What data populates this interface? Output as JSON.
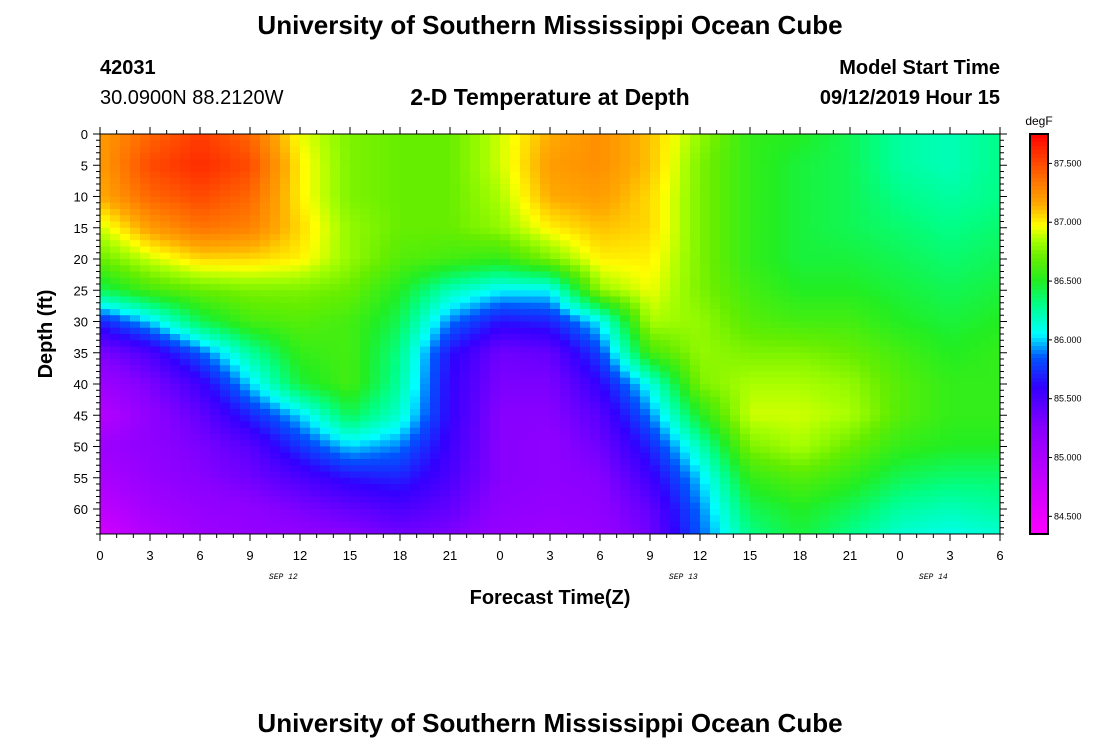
{
  "header": {
    "title": "University of Southern Mississippi Ocean Cube",
    "station_id": "42031",
    "coordinates": "30.0900N 88.2120W",
    "subtitle": "2-D Temperature at Depth",
    "model_label": "Model Start Time",
    "model_time": "09/12/2019 Hour 15"
  },
  "footer": {
    "title": "University of Southern Mississippi Ocean Cube"
  },
  "chart_data": {
    "type": "heatmap",
    "xlabel": "Forecast Time(Z)",
    "ylabel": "Depth (ft)",
    "x_tick_labels": [
      "0",
      "3",
      "6",
      "9",
      "12",
      "15",
      "18",
      "21",
      "0",
      "3",
      "6",
      "9",
      "12",
      "15",
      "18",
      "21",
      "0",
      "3",
      "6"
    ],
    "date_labels": [
      {
        "label": "SEP 12",
        "hour": 11
      },
      {
        "label": "SEP 13",
        "hour": 35
      },
      {
        "label": "SEP 14",
        "hour": 50
      }
    ],
    "xlim_hours": [
      0,
      54
    ],
    "y_ticks": [
      0,
      5,
      10,
      15,
      20,
      25,
      30,
      35,
      40,
      45,
      50,
      55,
      60
    ],
    "ylim": [
      0,
      64
    ],
    "colorbar": {
      "unit": "degF",
      "tick_labels": [
        "87.500",
        "87.000",
        "86.500",
        "86.000",
        "85.500",
        "85.000",
        "84.500"
      ],
      "tick_values": [
        87.5,
        87.0,
        86.5,
        86.0,
        85.5,
        85.0,
        84.5
      ],
      "range": [
        84.35,
        87.75
      ],
      "stops": [
        {
          "v": 84.35,
          "c": "#ff00ff"
        },
        {
          "v": 84.75,
          "c": "#cc00ff"
        },
        {
          "v": 85.25,
          "c": "#8800ff"
        },
        {
          "v": 85.6,
          "c": "#3300ff"
        },
        {
          "v": 85.85,
          "c": "#0055ff"
        },
        {
          "v": 86.05,
          "c": "#00ffff"
        },
        {
          "v": 86.3,
          "c": "#00ff88"
        },
        {
          "v": 86.5,
          "c": "#22ee22"
        },
        {
          "v": 86.7,
          "c": "#66ee00"
        },
        {
          "v": 86.85,
          "c": "#aaff00"
        },
        {
          "v": 86.97,
          "c": "#ffff00"
        },
        {
          "v": 87.15,
          "c": "#ffaa00"
        },
        {
          "v": 87.4,
          "c": "#ff6600"
        },
        {
          "v": 87.75,
          "c": "#ff0000"
        }
      ]
    },
    "grid_hours": [
      0,
      3,
      6,
      9,
      12,
      15,
      18,
      21,
      24,
      27,
      30,
      33,
      36,
      39,
      42,
      45,
      48,
      51,
      54
    ],
    "grid_depths": [
      0,
      5,
      10,
      15,
      20,
      25,
      30,
      35,
      40,
      45,
      50,
      55,
      60,
      64
    ],
    "values": [
      [
        87.2,
        87.4,
        87.55,
        87.4,
        86.95,
        86.75,
        86.7,
        86.7,
        86.9,
        87.15,
        87.25,
        87.1,
        86.8,
        86.55,
        86.5,
        86.4,
        86.25,
        86.2,
        86.3
      ],
      [
        87.2,
        87.5,
        87.6,
        87.5,
        87.0,
        86.75,
        86.7,
        86.7,
        86.9,
        87.2,
        87.25,
        87.1,
        86.75,
        86.55,
        86.45,
        86.4,
        86.25,
        86.2,
        86.3
      ],
      [
        87.15,
        87.4,
        87.5,
        87.4,
        87.0,
        86.75,
        86.7,
        86.7,
        86.85,
        87.15,
        87.2,
        87.05,
        86.75,
        86.55,
        86.45,
        86.4,
        86.3,
        86.25,
        86.3
      ],
      [
        86.9,
        87.2,
        87.35,
        87.3,
        87.05,
        86.8,
        86.7,
        86.7,
        86.8,
        87.0,
        87.1,
        87.05,
        86.75,
        86.55,
        86.45,
        86.4,
        86.35,
        86.3,
        86.35
      ],
      [
        86.7,
        86.9,
        87.05,
        87.05,
        87.0,
        86.8,
        86.65,
        86.6,
        86.55,
        86.75,
        87.0,
        87.0,
        86.75,
        86.55,
        86.45,
        86.45,
        86.4,
        86.35,
        86.4
      ],
      [
        86.4,
        86.6,
        86.7,
        86.75,
        86.75,
        86.7,
        86.5,
        86.2,
        86.05,
        86.05,
        86.8,
        86.95,
        86.75,
        86.6,
        86.5,
        86.5,
        86.45,
        86.4,
        86.45
      ],
      [
        85.7,
        86.0,
        86.4,
        86.6,
        86.65,
        86.6,
        86.4,
        85.9,
        85.65,
        85.7,
        86.05,
        86.85,
        86.8,
        86.65,
        86.6,
        86.6,
        86.5,
        86.45,
        86.5
      ],
      [
        85.3,
        85.5,
        85.85,
        86.25,
        86.55,
        86.6,
        86.3,
        85.65,
        85.35,
        85.4,
        85.8,
        86.6,
        86.8,
        86.75,
        86.75,
        86.7,
        86.6,
        86.5,
        86.55
      ],
      [
        85.1,
        85.3,
        85.55,
        86.0,
        86.45,
        86.6,
        86.25,
        85.6,
        85.3,
        85.3,
        85.6,
        86.1,
        86.75,
        86.85,
        86.85,
        86.8,
        86.65,
        86.55,
        86.55
      ],
      [
        84.9,
        85.2,
        85.4,
        85.7,
        86.0,
        86.4,
        86.15,
        85.6,
        85.25,
        85.25,
        85.45,
        85.9,
        86.5,
        86.9,
        86.9,
        86.85,
        86.65,
        86.55,
        86.55
      ],
      [
        85.1,
        85.2,
        85.3,
        85.45,
        85.75,
        86.0,
        85.9,
        85.55,
        85.25,
        85.2,
        85.35,
        85.7,
        86.2,
        86.75,
        86.85,
        86.7,
        86.55,
        86.5,
        86.5
      ],
      [
        85.0,
        85.15,
        85.25,
        85.35,
        85.5,
        85.65,
        85.7,
        85.5,
        85.25,
        85.2,
        85.25,
        85.55,
        86.0,
        86.55,
        86.65,
        86.55,
        86.4,
        86.35,
        86.35
      ],
      [
        84.85,
        85.05,
        85.15,
        85.2,
        85.3,
        85.4,
        85.5,
        85.4,
        85.2,
        85.15,
        85.2,
        85.4,
        85.9,
        86.4,
        86.5,
        86.4,
        86.25,
        86.2,
        86.25
      ],
      [
        84.7,
        84.95,
        85.1,
        85.15,
        85.2,
        85.25,
        85.35,
        85.3,
        85.15,
        85.1,
        85.15,
        85.35,
        85.85,
        86.3,
        86.45,
        86.3,
        86.15,
        86.1,
        86.15
      ]
    ]
  }
}
